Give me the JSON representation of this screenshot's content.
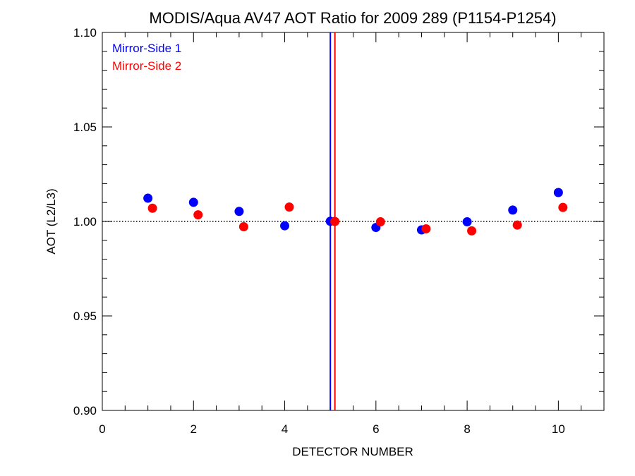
{
  "chart_data": {
    "type": "scatter",
    "title": "MODIS/Aqua AV47 AOT Ratio for 2009 289 (P1154-P1254)",
    "xlabel": "DETECTOR NUMBER",
    "ylabel": "AOT (L2/L3)",
    "xlim": [
      0,
      11
    ],
    "ylim": [
      0.9,
      1.1
    ],
    "xticks": [
      0,
      2,
      4,
      6,
      8,
      10
    ],
    "xtick_labels": [
      "0",
      "2",
      "4",
      "6",
      "8",
      "10"
    ],
    "yticks": [
      0.9,
      0.95,
      1.0,
      1.05,
      1.1
    ],
    "ytick_labels": [
      "0.90",
      "0.95",
      "1.00",
      "1.05",
      "1.10"
    ],
    "x_minor_step": 0.5,
    "y_minor_step": 0.01,
    "reference_line": {
      "y": 1.0,
      "style": "dotted",
      "color": "#000000"
    },
    "legend_position": "top-left",
    "series": [
      {
        "name": "Mirror-Side 1",
        "color": "#0000ff",
        "x": [
          1,
          2,
          3,
          4,
          5,
          6,
          7,
          8,
          9,
          10
        ],
        "y": [
          1.0123,
          1.0101,
          1.0053,
          0.9977,
          1.0001,
          0.9968,
          0.9955,
          0.9998,
          1.006,
          1.0153
        ],
        "vline_x": 5.0
      },
      {
        "name": "Mirror-Side 2",
        "color": "#ff0000",
        "x": [
          1.1,
          2.1,
          3.1,
          4.1,
          5.1,
          6.1,
          7.1,
          8.1,
          9.1,
          10.1
        ],
        "y": [
          1.007,
          1.0035,
          0.9972,
          1.0076,
          1.0,
          0.9998,
          0.9961,
          0.995,
          0.9981,
          1.0074
        ],
        "vline_x": 5.1
      }
    ]
  }
}
